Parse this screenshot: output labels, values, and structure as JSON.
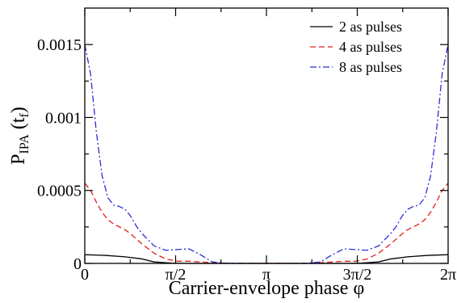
{
  "chart_data": {
    "type": "line",
    "title": "",
    "xlabel": "Carrier-envelope phase φ",
    "ylabel": {
      "main": "P",
      "sub": "IPA",
      "arg": " (t",
      "arg_sub": "f",
      "arg_close": ")"
    },
    "xlim": [
      0,
      6.2832
    ],
    "ylim": [
      0,
      0.00175
    ],
    "x_ticks": [
      {
        "value": 0,
        "label": "0"
      },
      {
        "value": 1.5708,
        "label": "π/2"
      },
      {
        "value": 3.1416,
        "label": "π"
      },
      {
        "value": 4.7124,
        "label": "3π/2"
      },
      {
        "value": 6.2832,
        "label": "2π"
      }
    ],
    "y_ticks": [
      {
        "value": 0,
        "label": "0"
      },
      {
        "value": 0.0005,
        "label": "0.0005"
      },
      {
        "value": 0.001,
        "label": "0.001"
      },
      {
        "value": 0.0015,
        "label": "0.0015"
      }
    ],
    "grid": false,
    "legend_position": "top-right",
    "series": [
      {
        "name": "2 as pulses",
        "color": "#000000",
        "dash": "solid",
        "x": [
          0,
          0.35,
          0.7,
          1.0,
          1.2,
          1.5,
          1.8,
          2.2,
          2.6,
          3.1416,
          3.68,
          4.08,
          4.48,
          4.78,
          5.08,
          5.28,
          5.58,
          5.93,
          6.2832
        ],
        "y": [
          6e-05,
          5.5e-05,
          4.5e-05,
          3e-05,
          1e-05,
          2e-06,
          0.0,
          0.0,
          0.0,
          0.0,
          0.0,
          0.0,
          0.0,
          2e-06,
          1e-05,
          3e-05,
          4.5e-05,
          5.5e-05,
          6e-05
        ]
      },
      {
        "name": "4 as pulses",
        "color": "#e0201b",
        "dash": "dashed",
        "x": [
          0,
          0.1,
          0.2,
          0.3,
          0.4,
          0.5,
          0.6,
          0.7,
          0.8,
          1.0,
          1.2,
          1.4,
          1.6,
          1.8,
          2.0,
          2.2,
          2.5,
          2.8,
          3.1416,
          3.48,
          3.78,
          4.08,
          4.28,
          4.48,
          4.68,
          4.88,
          5.08,
          5.28,
          5.48,
          5.58,
          5.68,
          5.78,
          5.88,
          5.98,
          6.08,
          6.18,
          6.2832
        ],
        "y": [
          0.00055,
          0.0005,
          0.00042,
          0.00035,
          0.0003,
          0.00027,
          0.00025,
          0.00023,
          0.0002,
          0.00013,
          7e-05,
          3e-05,
          1.5e-05,
          1.5e-05,
          1e-05,
          5e-06,
          0.0,
          0.0,
          0.0,
          0.0,
          0.0,
          5e-06,
          1e-05,
          1.5e-05,
          1.5e-05,
          3e-05,
          7e-05,
          0.00013,
          0.0002,
          0.00023,
          0.00025,
          0.00027,
          0.0003,
          0.00035,
          0.00042,
          0.0005,
          0.00055
        ]
      },
      {
        "name": "8 as pulses",
        "color": "#2a2fd6",
        "dash": "dashdot",
        "x": [
          0,
          0.1,
          0.2,
          0.3,
          0.4,
          0.5,
          0.6,
          0.7,
          0.8,
          0.9,
          1.0,
          1.2,
          1.4,
          1.6,
          1.8,
          2.0,
          2.2,
          2.5,
          2.8,
          3.1416,
          3.48,
          3.78,
          4.08,
          4.28,
          4.48,
          4.68,
          4.88,
          5.08,
          5.28,
          5.38,
          5.48,
          5.58,
          5.68,
          5.78,
          5.88,
          5.98,
          6.08,
          6.18,
          6.2832
        ],
        "y": [
          0.0015,
          0.0013,
          0.0009,
          0.0006,
          0.00045,
          0.0004,
          0.00039,
          0.00037,
          0.00032,
          0.00025,
          0.0002,
          0.00012,
          9e-05,
          9.5e-05,
          0.0001,
          6e-05,
          1e-05,
          0.0,
          0.0,
          0.0,
          0.0,
          0.0,
          1e-05,
          6e-05,
          0.0001,
          9.5e-05,
          9e-05,
          0.00012,
          0.0002,
          0.00025,
          0.00032,
          0.00037,
          0.00039,
          0.0004,
          0.00045,
          0.0006,
          0.0009,
          0.0013,
          0.0015
        ]
      }
    ]
  }
}
